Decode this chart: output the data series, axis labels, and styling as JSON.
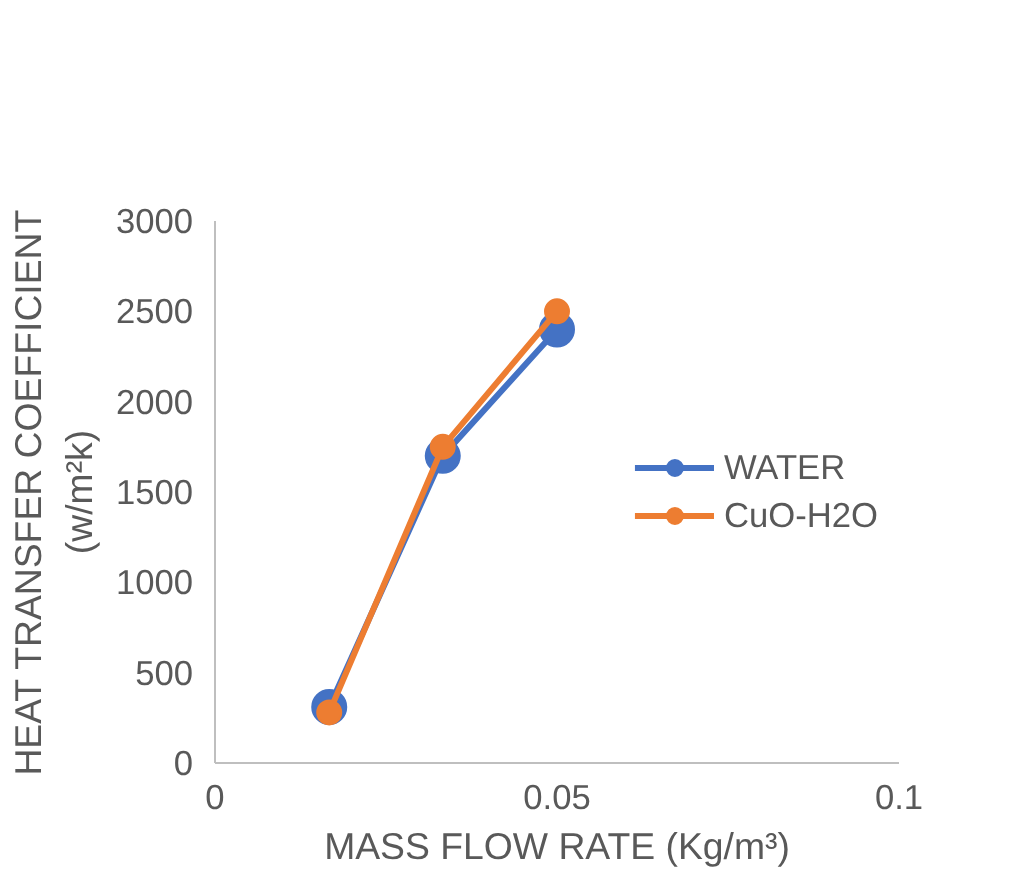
{
  "chart_data": {
    "type": "line",
    "xlabel": "MASS FLOW RATE (Kg/m³)",
    "ylabel": "HEAT TRANSFER COEFFICIENT\n(w/m²k)",
    "x": [
      0.0167,
      0.0333,
      0.05
    ],
    "series": [
      {
        "name": "WATER",
        "color": "#4472c4",
        "values": [
          310,
          1700,
          2400
        ]
      },
      {
        "name": "CuO-H2O",
        "color": "#ed7d31",
        "values": [
          280,
          1750,
          2500
        ]
      }
    ],
    "xlim": [
      0,
      0.1
    ],
    "xticks": [
      0,
      0.05,
      0.1
    ],
    "ylim": [
      0,
      3000
    ],
    "yticks": [
      0,
      500,
      1000,
      1500,
      2000,
      2500,
      3000
    ],
    "grid": false,
    "legend": "right",
    "marker": "circle",
    "line_style": "solid"
  }
}
